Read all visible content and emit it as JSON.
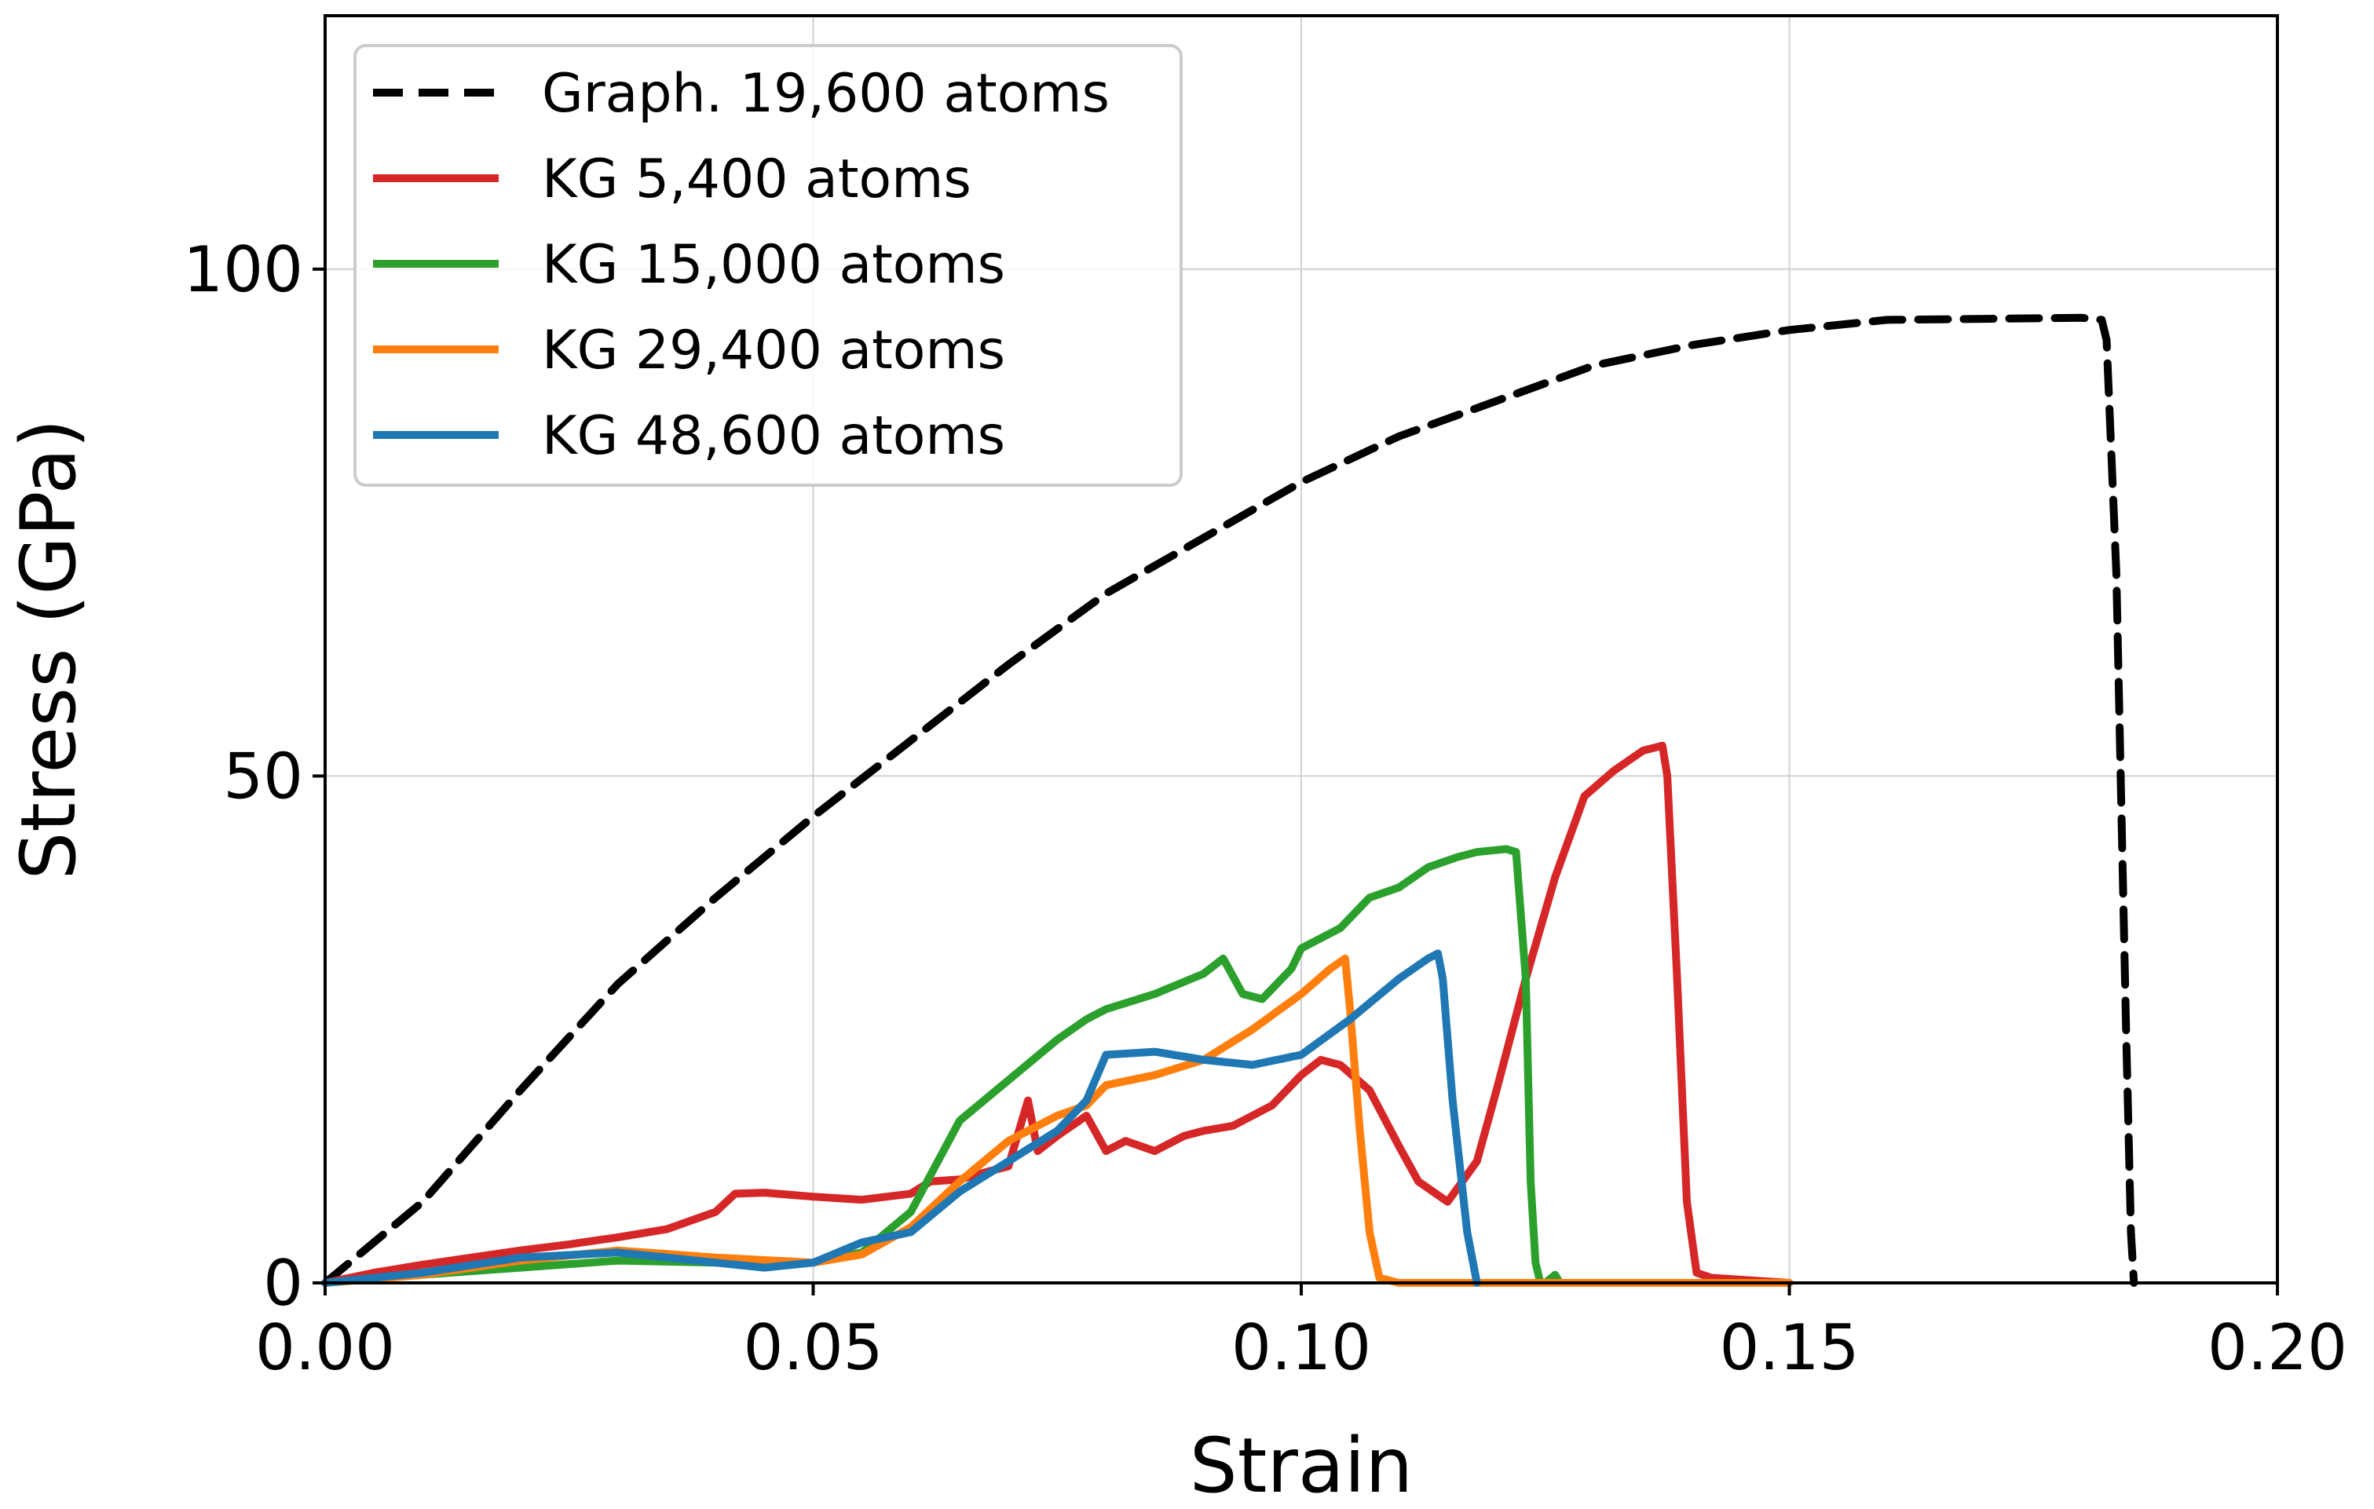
{
  "chart_data": {
    "type": "line",
    "title": "",
    "xlabel": "Strain",
    "ylabel": "Stress (GPa)",
    "xlim": [
      0.0,
      0.2
    ],
    "ylim": [
      0,
      125
    ],
    "grid": true,
    "legend_position": "top-left",
    "x_ticks": [
      {
        "value": 0.0,
        "label": "0.00"
      },
      {
        "value": 0.05,
        "label": "0.05"
      },
      {
        "value": 0.1,
        "label": "0.10"
      },
      {
        "value": 0.15,
        "label": "0.15"
      },
      {
        "value": 0.2,
        "label": "0.20"
      }
    ],
    "y_ticks": [
      {
        "value": 0,
        "label": "0"
      },
      {
        "value": 50,
        "label": "50"
      },
      {
        "value": 100,
        "label": "100"
      }
    ],
    "series": [
      {
        "name": "Graph. 19,600 atoms",
        "color": "#000000",
        "dashed": true,
        "x": [
          0,
          0.01,
          0.02,
          0.03,
          0.04,
          0.05,
          0.06,
          0.07,
          0.08,
          0.09,
          0.1,
          0.11,
          0.12,
          0.13,
          0.14,
          0.15,
          0.16,
          0.17,
          0.18,
          0.182,
          0.1825,
          0.1835,
          0.1845,
          0.185,
          0.1853
        ],
        "y": [
          0,
          8,
          19,
          29.5,
          38,
          46,
          53.5,
          61,
          68,
          73.5,
          79,
          83.5,
          87,
          90.5,
          92.5,
          94,
          95,
          95.1,
          95.2,
          95,
          93,
          70,
          25,
          5,
          0
        ]
      },
      {
        "name": "KG 5,400 atoms",
        "color": "#d62728",
        "dashed": false,
        "x": [
          0,
          0.005,
          0.01,
          0.015,
          0.02,
          0.025,
          0.03,
          0.035,
          0.04,
          0.042,
          0.045,
          0.05,
          0.055,
          0.06,
          0.062,
          0.065,
          0.068,
          0.07,
          0.072,
          0.073,
          0.075,
          0.078,
          0.08,
          0.082,
          0.085,
          0.088,
          0.09,
          0.093,
          0.095,
          0.097,
          0.1,
          0.102,
          0.104,
          0.107,
          0.11,
          0.112,
          0.115,
          0.118,
          0.12,
          0.123,
          0.126,
          0.129,
          0.132,
          0.135,
          0.137,
          0.1375,
          0.1385,
          0.1395,
          0.1405,
          0.142,
          0.15
        ],
        "y": [
          0,
          1,
          1.8,
          2.5,
          3.2,
          3.8,
          4.5,
          5.3,
          7.0,
          8.8,
          8.9,
          8.5,
          8.2,
          8.8,
          10.0,
          10.2,
          11.0,
          11.5,
          18.0,
          13.0,
          14.5,
          16.5,
          13.0,
          14.0,
          13.0,
          14.5,
          15.0,
          15.5,
          16.5,
          17.5,
          20.5,
          22.0,
          21.5,
          19.0,
          13.5,
          10.0,
          8.0,
          12.0,
          19.0,
          30.0,
          40.0,
          48.0,
          50.5,
          52.5,
          53.0,
          50.0,
          30.0,
          8.0,
          1.0,
          0.5,
          0.0
        ]
      },
      {
        "name": "KG 15,000 atoms",
        "color": "#2ca02c",
        "dashed": false,
        "x": [
          0,
          0.01,
          0.02,
          0.03,
          0.04,
          0.05,
          0.055,
          0.06,
          0.065,
          0.07,
          0.075,
          0.078,
          0.08,
          0.085,
          0.09,
          0.092,
          0.094,
          0.096,
          0.099,
          0.1,
          0.104,
          0.107,
          0.11,
          0.113,
          0.116,
          0.118,
          0.121,
          0.122,
          0.123,
          0.1235,
          0.124,
          0.1245,
          0.125,
          0.126,
          0.1265,
          0.15
        ],
        "y": [
          0,
          0.8,
          1.5,
          2.2,
          2.0,
          2.0,
          3.0,
          7.0,
          16.0,
          20.0,
          24.0,
          26.0,
          27.0,
          28.5,
          30.5,
          32.0,
          28.5,
          28.0,
          31.0,
          33.0,
          35.0,
          38.0,
          39.0,
          41.0,
          42.0,
          42.5,
          42.8,
          42.5,
          30.0,
          10.0,
          2.0,
          0.0,
          0.0,
          0.8,
          0.0,
          0.0
        ]
      },
      {
        "name": "KG 29,400 atoms",
        "color": "#ff7f0e",
        "dashed": false,
        "x": [
          0,
          0.01,
          0.02,
          0.03,
          0.04,
          0.05,
          0.055,
          0.06,
          0.065,
          0.07,
          0.075,
          0.078,
          0.08,
          0.085,
          0.09,
          0.095,
          0.1,
          0.103,
          0.1045,
          0.105,
          0.106,
          0.107,
          0.108,
          0.11,
          0.15
        ],
        "y": [
          0,
          0.8,
          2.2,
          3.2,
          2.5,
          2.0,
          2.8,
          5.5,
          10.0,
          14.0,
          16.5,
          17.5,
          19.5,
          20.5,
          22.0,
          25.0,
          28.5,
          31.0,
          32.0,
          27.0,
          15.0,
          5.0,
          0.5,
          0.0,
          0.0
        ]
      },
      {
        "name": "KG 48,600 atoms",
        "color": "#1f77b4",
        "dashed": false,
        "x": [
          0,
          0.01,
          0.02,
          0.03,
          0.035,
          0.04,
          0.045,
          0.05,
          0.055,
          0.06,
          0.065,
          0.07,
          0.075,
          0.078,
          0.08,
          0.085,
          0.09,
          0.095,
          0.1,
          0.105,
          0.11,
          0.113,
          0.114,
          0.1145,
          0.1155,
          0.117,
          0.118
        ],
        "y": [
          0,
          1.0,
          2.5,
          3.0,
          2.5,
          2.0,
          1.5,
          2.0,
          4.0,
          5.0,
          9.0,
          12.0,
          15.0,
          18.0,
          22.5,
          22.8,
          22.0,
          21.5,
          22.5,
          26.0,
          30.0,
          32.0,
          32.5,
          30.0,
          18.0,
          5.0,
          0.0
        ]
      }
    ]
  }
}
